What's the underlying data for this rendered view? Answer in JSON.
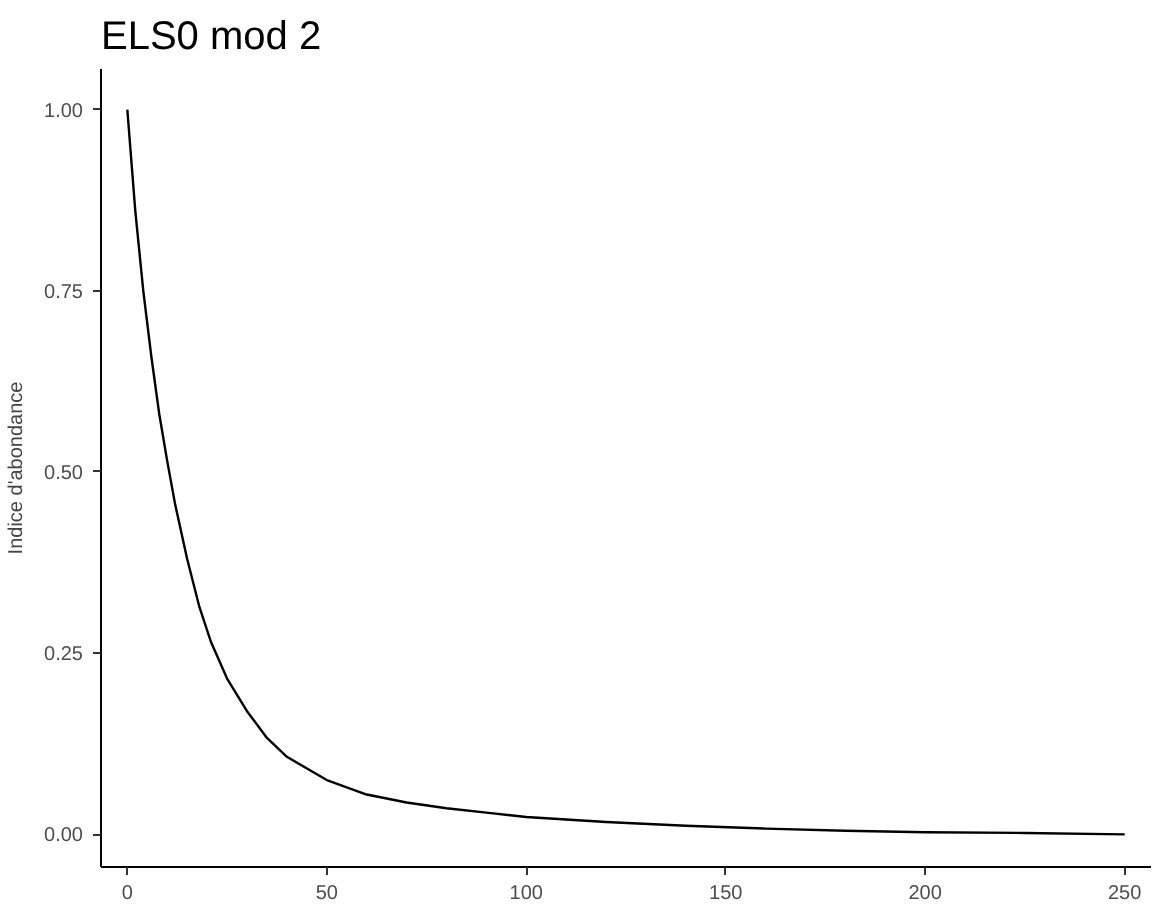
{
  "chart_data": {
    "type": "line",
    "title": "ELS0 mod 2",
    "ylabel": "Indice d'abondance",
    "x": [
      0,
      2,
      4,
      6,
      8,
      10,
      12,
      15,
      18,
      21,
      25,
      30,
      35,
      40,
      50,
      60,
      70,
      80,
      90,
      100,
      120,
      140,
      160,
      180,
      200,
      225,
      250
    ],
    "series": [
      {
        "color": "#000000",
        "values": [
          1.0,
          0.86,
          0.75,
          0.66,
          0.58,
          0.515,
          0.455,
          0.38,
          0.315,
          0.265,
          0.215,
          0.17,
          0.133,
          0.107,
          0.075,
          0.055,
          0.044,
          0.036,
          0.03,
          0.024,
          0.017,
          0.012,
          0.008,
          0.005,
          0.003,
          0.002,
          0.0
        ]
      }
    ],
    "xlim": [
      -6.6,
      256.6
    ],
    "xticks": [
      0,
      50,
      100,
      150,
      200,
      250
    ],
    "ylim": [
      -0.045,
      1.056
    ],
    "yticks": [
      {
        "value": 0,
        "label": "0.00"
      },
      {
        "value": 0.25,
        "label": "0.25"
      },
      {
        "value": 0.5,
        "label": "0.50"
      },
      {
        "value": 0.75,
        "label": "0.75"
      },
      {
        "value": 1,
        "label": "1.00"
      }
    ],
    "marker": "none",
    "line_style": "solid"
  }
}
